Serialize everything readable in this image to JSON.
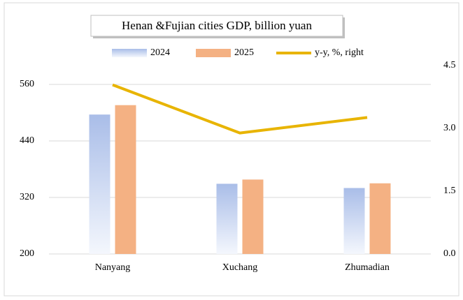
{
  "chart_data": {
    "type": "bar",
    "title": "Henan &Fujian cities GDP, billion yuan",
    "categories": [
      "Nanyang",
      "Xuchang",
      "Zhumadian"
    ],
    "series": [
      {
        "name": "2024",
        "color": "#a9bde8",
        "values": [
          496,
          349,
          340
        ]
      },
      {
        "name": "2025",
        "color": "#f4b183",
        "values": [
          516,
          358,
          350
        ]
      },
      {
        "name": "y-y, %, right",
        "color": "#e8b400",
        "type": "line",
        "axis": "y2",
        "values": [
          4.04,
          2.89,
          3.26
        ]
      }
    ],
    "ylim": [
      200,
      600
    ],
    "yticks": [
      200,
      320,
      440,
      560
    ],
    "y2lim": [
      0,
      4.5
    ],
    "y2ticks": [
      {
        "value": 0,
        "label": "0.0"
      },
      1.5,
      {
        "value": 3,
        "label": "3.0"
      },
      4.5
    ],
    "grid": true
  }
}
